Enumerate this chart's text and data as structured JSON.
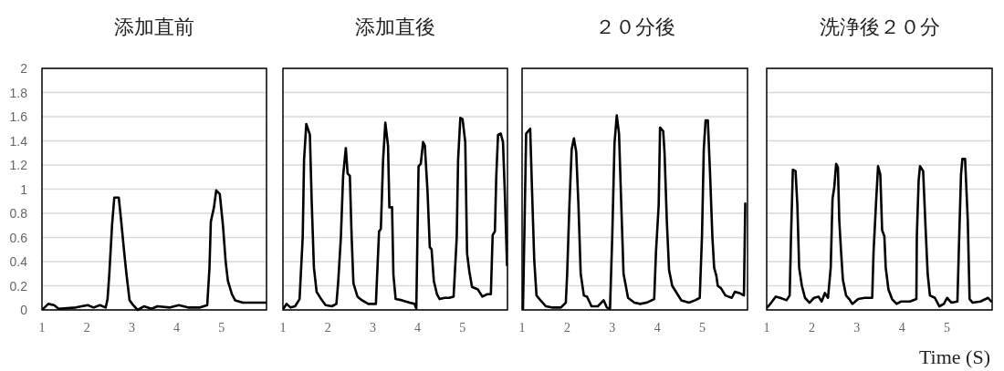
{
  "chart_data": [
    {
      "type": "line",
      "title": "添加直前",
      "xlim": [
        1,
        6
      ],
      "xticks": [
        1,
        2,
        3,
        4,
        5
      ],
      "ylim": [
        0,
        2
      ],
      "yticks": [
        0,
        0.2,
        0.4,
        0.6,
        0.8,
        1,
        1.2,
        1.4,
        1.6,
        1.8,
        2
      ],
      "grid": "y",
      "series": [
        {
          "color": "#000000",
          "x": [
            1.03,
            1.14,
            1.27,
            1.37,
            1.75,
            2.02,
            2.15,
            2.29,
            2.42,
            2.46,
            2.5,
            2.56,
            2.61,
            2.71,
            2.76,
            2.83,
            2.88,
            2.95,
            3.03,
            3.13,
            3.27,
            3.44,
            3.57,
            3.85,
            4.05,
            4.25,
            4.52,
            4.68,
            4.73,
            4.76,
            4.83,
            4.88,
            4.96,
            5.03,
            5.09,
            5.14,
            5.23,
            5.3,
            5.47,
            5.67,
            5.88,
            5.99
          ],
          "values": [
            0.01,
            0.05,
            0.04,
            0.01,
            0.02,
            0.04,
            0.02,
            0.04,
            0.02,
            0.09,
            0.3,
            0.7,
            0.93,
            0.93,
            0.75,
            0.48,
            0.3,
            0.08,
            0.04,
            0.0,
            0.03,
            0.01,
            0.03,
            0.02,
            0.04,
            0.02,
            0.02,
            0.04,
            0.35,
            0.73,
            0.85,
            0.99,
            0.96,
            0.7,
            0.4,
            0.24,
            0.13,
            0.08,
            0.06,
            0.06,
            0.06,
            0.06
          ]
        }
      ]
    },
    {
      "type": "line",
      "title": "添加直後",
      "xlim": [
        1,
        6
      ],
      "xticks": [
        1,
        2,
        3,
        4,
        5
      ],
      "ylim": [
        0,
        2
      ],
      "yticks": [
        0,
        0.2,
        0.4,
        0.6,
        0.8,
        1,
        1.2,
        1.4,
        1.6,
        1.8,
        2
      ],
      "grid": "y",
      "tick_labels": "x",
      "series": [
        {
          "color": "#000000",
          "x": [
            1.01,
            1.08,
            1.17,
            1.27,
            1.37,
            1.44,
            1.47,
            1.52,
            1.6,
            1.64,
            1.69,
            1.75,
            1.85,
            1.95,
            2.09,
            2.19,
            2.23,
            2.29,
            2.34,
            2.4,
            2.44,
            2.49,
            2.53,
            2.57,
            2.66,
            2.76,
            2.9,
            3.07,
            3.14,
            3.18,
            3.23,
            3.28,
            3.34,
            3.37,
            3.43,
            3.46,
            3.51,
            3.65,
            3.82,
            3.93,
            3.97,
            4.02,
            4.07,
            4.12,
            4.16,
            4.22,
            4.27,
            4.31,
            4.36,
            4.43,
            4.49,
            4.6,
            4.7,
            4.8,
            4.87,
            4.9,
            4.95,
            5.0,
            5.06,
            5.1,
            5.15,
            5.21,
            5.34,
            5.44,
            5.55,
            5.63,
            5.67,
            5.72,
            5.75,
            5.79,
            5.85,
            5.9,
            5.94,
            5.99
          ],
          "values": [
            0.01,
            0.05,
            0.02,
            0.03,
            0.09,
            0.6,
            1.24,
            1.54,
            1.45,
            0.9,
            0.35,
            0.15,
            0.09,
            0.04,
            0.03,
            0.05,
            0.23,
            0.6,
            1.11,
            1.34,
            1.13,
            1.11,
            0.6,
            0.22,
            0.11,
            0.08,
            0.05,
            0.05,
            0.65,
            0.67,
            1.24,
            1.55,
            1.36,
            0.85,
            0.85,
            0.29,
            0.09,
            0.08,
            0.06,
            0.05,
            0.01,
            1.19,
            1.21,
            1.39,
            1.36,
            0.98,
            0.52,
            0.5,
            0.24,
            0.13,
            0.09,
            0.1,
            0.1,
            0.11,
            0.6,
            1.24,
            1.59,
            1.58,
            1.39,
            0.47,
            0.32,
            0.19,
            0.17,
            0.11,
            0.13,
            0.13,
            0.62,
            0.65,
            1.1,
            1.45,
            1.46,
            1.39,
            0.98,
            0.37
          ]
        }
      ]
    },
    {
      "type": "line",
      "title": "２０分後",
      "xlim": [
        1,
        6
      ],
      "xticks": [
        1,
        2,
        3,
        4,
        5
      ],
      "ylim": [
        0,
        2
      ],
      "yticks": [
        0,
        0.2,
        0.4,
        0.6,
        0.8,
        1,
        1.2,
        1.4,
        1.6,
        1.8,
        2
      ],
      "grid": "y",
      "tick_labels": "x",
      "series": [
        {
          "color": "#000000",
          "x": [
            1.02,
            1.05,
            1.09,
            1.18,
            1.22,
            1.27,
            1.32,
            1.43,
            1.53,
            1.66,
            1.86,
            1.97,
            2.0,
            2.05,
            2.1,
            2.15,
            2.2,
            2.25,
            2.3,
            2.37,
            2.44,
            2.54,
            2.68,
            2.81,
            2.88,
            2.95,
            3.0,
            3.05,
            3.1,
            3.15,
            3.2,
            3.25,
            3.3,
            3.35,
            3.49,
            3.62,
            3.76,
            3.93,
            3.97,
            4.03,
            4.06,
            4.13,
            4.16,
            4.21,
            4.26,
            4.33,
            4.43,
            4.53,
            4.7,
            4.84,
            4.94,
            4.99,
            5.03,
            5.07,
            5.12,
            5.17,
            5.22,
            5.26,
            5.31,
            5.34,
            5.41,
            5.51,
            5.65,
            5.72,
            5.82,
            5.92,
            5.95
          ],
          "values": [
            0.01,
            0.61,
            1.46,
            1.5,
            1.0,
            0.41,
            0.12,
            0.07,
            0.03,
            0.02,
            0.02,
            0.06,
            0.3,
            0.87,
            1.33,
            1.42,
            1.31,
            0.87,
            0.3,
            0.12,
            0.11,
            0.03,
            0.03,
            0.08,
            0.02,
            0.01,
            0.61,
            1.38,
            1.61,
            1.46,
            0.87,
            0.3,
            0.2,
            0.1,
            0.06,
            0.05,
            0.06,
            0.09,
            0.48,
            0.87,
            1.51,
            1.48,
            1.3,
            0.74,
            0.33,
            0.2,
            0.14,
            0.08,
            0.06,
            0.08,
            0.1,
            0.61,
            1.33,
            1.57,
            1.57,
            1.12,
            0.61,
            0.35,
            0.28,
            0.2,
            0.18,
            0.12,
            0.1,
            0.15,
            0.14,
            0.12,
            0.88
          ]
        }
      ]
    },
    {
      "type": "line",
      "title": "洗浄後２０分",
      "xlabel": "Time (S)",
      "xlim": [
        1,
        6
      ],
      "xticks": [
        1,
        2,
        3,
        4,
        5
      ],
      "ylim": [
        0,
        2
      ],
      "yticks": [
        0,
        0.2,
        0.4,
        0.6,
        0.8,
        1,
        1.2,
        1.4,
        1.6,
        1.8,
        2
      ],
      "grid": "y",
      "tick_labels": "x",
      "series": [
        {
          "color": "#000000",
          "x": [
            1.01,
            1.1,
            1.2,
            1.3,
            1.44,
            1.51,
            1.54,
            1.58,
            1.64,
            1.68,
            1.72,
            1.78,
            1.85,
            1.95,
            2.05,
            2.15,
            2.22,
            2.29,
            2.36,
            2.42,
            2.46,
            2.5,
            2.54,
            2.58,
            2.61,
            2.65,
            2.69,
            2.76,
            2.83,
            2.9,
            3.03,
            3.17,
            3.34,
            3.37,
            3.43,
            3.47,
            3.52,
            3.56,
            3.61,
            3.64,
            3.7,
            3.78,
            3.88,
            3.98,
            4.18,
            4.32,
            4.33,
            4.37,
            4.4,
            4.47,
            4.52,
            4.57,
            4.62,
            4.73,
            4.83,
            4.93,
            5.0,
            5.1,
            5.23,
            5.27,
            5.31,
            5.34,
            5.4,
            5.46,
            5.5,
            5.57,
            5.74,
            5.91,
            5.98
          ],
          "values": [
            0.02,
            0.06,
            0.11,
            0.1,
            0.08,
            0.12,
            0.61,
            1.16,
            1.15,
            0.87,
            0.35,
            0.2,
            0.1,
            0.06,
            0.1,
            0.11,
            0.07,
            0.14,
            0.1,
            0.35,
            0.92,
            1.02,
            1.21,
            1.18,
            0.74,
            0.48,
            0.25,
            0.12,
            0.09,
            0.05,
            0.09,
            0.1,
            0.1,
            0.48,
            0.92,
            1.19,
            1.12,
            0.66,
            0.61,
            0.35,
            0.17,
            0.09,
            0.05,
            0.07,
            0.07,
            0.09,
            0.61,
            1.07,
            1.19,
            1.15,
            0.71,
            0.3,
            0.12,
            0.1,
            0.03,
            0.05,
            0.1,
            0.06,
            0.07,
            0.61,
            1.12,
            1.25,
            1.25,
            0.74,
            0.09,
            0.06,
            0.07,
            0.1,
            0.07
          ]
        }
      ]
    }
  ]
}
